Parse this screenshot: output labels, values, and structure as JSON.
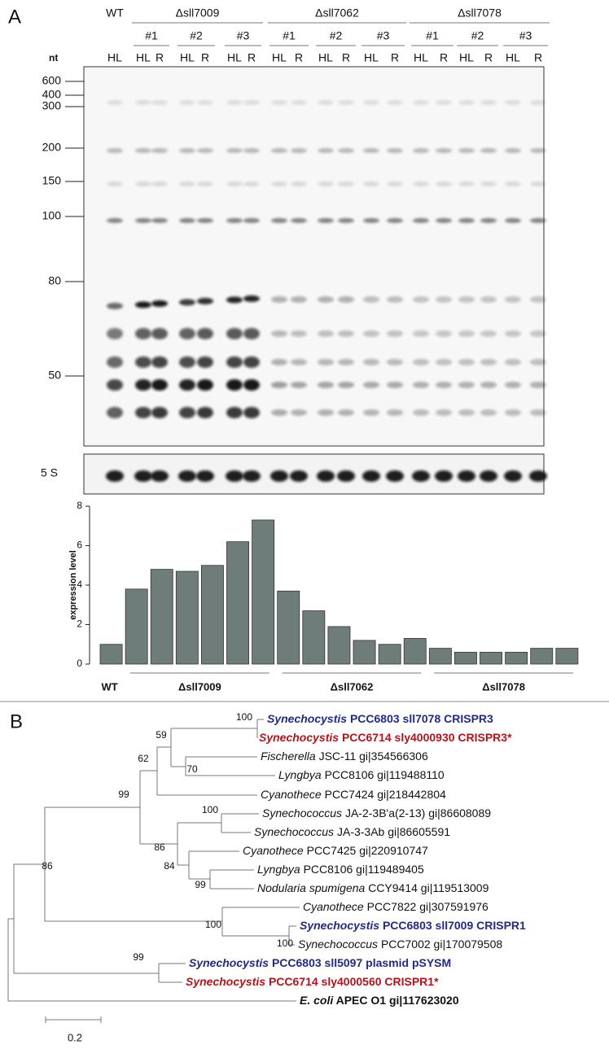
{
  "panel_a": {
    "label": "A",
    "size_unit": "nt",
    "size_markers": [
      600,
      400,
      300,
      200,
      150,
      100,
      80,
      50
    ],
    "strains": [
      {
        "name": "WT",
        "replicates": [
          {
            "lanes": [
              "HL"
            ]
          }
        ]
      },
      {
        "name": "Δsll7009",
        "replicates": [
          {
            "name": "#1",
            "lanes": [
              "HL",
              "R"
            ]
          },
          {
            "name": "#2",
            "lanes": [
              "HL",
              "R"
            ]
          },
          {
            "name": "#3",
            "lanes": [
              "HL",
              "R"
            ]
          }
        ]
      },
      {
        "name": "Δsll7062",
        "replicates": [
          {
            "name": "#1",
            "lanes": [
              "HL",
              "R"
            ]
          },
          {
            "name": "#2",
            "lanes": [
              "HL",
              "R"
            ]
          },
          {
            "name": "#3",
            "lanes": [
              "HL",
              "R"
            ]
          }
        ]
      },
      {
        "name": "Δsll7078",
        "replicates": [
          {
            "name": "#1",
            "lanes": [
              "HL",
              "R"
            ]
          },
          {
            "name": "#2",
            "lanes": [
              "HL",
              "R"
            ]
          },
          {
            "name": "#3",
            "lanes": [
              "HL",
              "R"
            ]
          }
        ]
      }
    ],
    "loading_control": "5 S"
  },
  "chart_data": {
    "type": "bar",
    "ylabel": "expression level",
    "categories": [
      "WT",
      null,
      null,
      null,
      null,
      null,
      null,
      null,
      null,
      null,
      null,
      null,
      null,
      null,
      null,
      null,
      null,
      null,
      null
    ],
    "group_labels": [
      "Δsll7009",
      "Δsll7062",
      "Δsll7078"
    ],
    "values": [
      1.0,
      3.8,
      4.8,
      4.7,
      5.0,
      6.2,
      7.3,
      3.7,
      2.7,
      1.9,
      1.2,
      1.0,
      1.3,
      0.8,
      0.6,
      0.6,
      0.6,
      0.8,
      0.8
    ],
    "color": "#6f7d7a",
    "ylim": [
      0,
      8
    ],
    "yticks": [
      0,
      2,
      4,
      6,
      8
    ]
  },
  "panel_b": {
    "label": "B",
    "leaves": [
      {
        "genus": "Synechocystis",
        "text": "PCC6803 sll7078 CRISPR3",
        "color": "#1f2a8a",
        "bold": true
      },
      {
        "genus": "Synechocystis",
        "text": "PCC6714 sly4000930 CRISPR3*",
        "color": "#b3141c",
        "bold": true
      },
      {
        "genus": "Fischerella",
        "text": "JSC-11 gi|354566306",
        "color": "#111111",
        "bold": false
      },
      {
        "genus": "Lyngbya",
        "text": "PCC8106 gi|119488110",
        "color": "#111111",
        "bold": false
      },
      {
        "genus": "Cyanothece",
        "text": "PCC7424 gi|218442804",
        "color": "#111111",
        "bold": false
      },
      {
        "genus": "Synechococcus",
        "text": "JA-2-3B'a(2-13) gi|86608089",
        "color": "#111111",
        "bold": false
      },
      {
        "genus": "Synechococcus",
        "text": "JA-3-3Ab gi|86605591",
        "color": "#111111",
        "bold": false
      },
      {
        "genus": "Cyanothece",
        "text": "PCC7425 gi|220910747",
        "color": "#111111",
        "bold": false
      },
      {
        "genus": "Lyngbya",
        "text": "PCC8106 gi|119489405",
        "color": "#111111",
        "bold": false
      },
      {
        "genus": "Nodularia spumigena",
        "text": "CCY9414 gi|119513009",
        "color": "#111111",
        "bold": false
      },
      {
        "genus": "Cyanothece",
        "text": "PCC7822 gi|307591976",
        "color": "#111111",
        "bold": false
      },
      {
        "genus": "Synechocystis",
        "text": "PCC6803 sll7009 CRISPR1",
        "color": "#1f2a8a",
        "bold": true
      },
      {
        "genus": "Synechococcus",
        "text": "PCC7002 gi|170079508",
        "color": "#111111",
        "bold": false
      },
      {
        "genus": "Synechocystis",
        "text": "PCC6803 sll5097 plasmid pSYSM",
        "color": "#1f2a8a",
        "bold": true
      },
      {
        "genus": "Synechocystis",
        "text": "PCC6714 sly4000560 CRISPR1*",
        "color": "#b3141c",
        "bold": true
      },
      {
        "genus": "E. coli",
        "text": "APEC O1 gi|117623020",
        "color": "#111111",
        "bold": true
      }
    ],
    "bootstrap": [
      100,
      59,
      62,
      70,
      99,
      100,
      86,
      84,
      99,
      86,
      100,
      100,
      99
    ],
    "scale_bar": 0.2
  }
}
